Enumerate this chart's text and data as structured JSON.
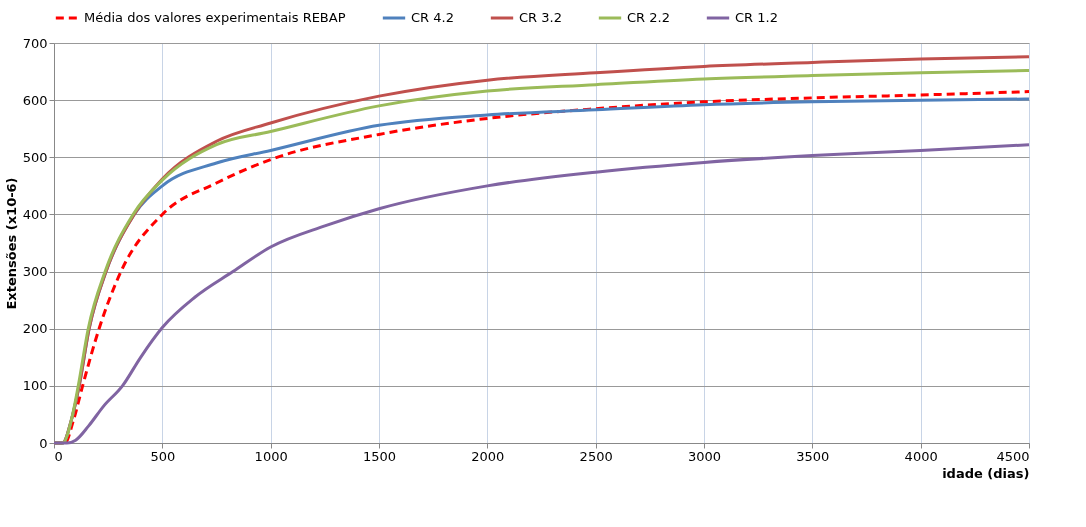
{
  "chart_data": {
    "type": "line",
    "xlabel": "idade (dias)",
    "ylabel": "Extensões (x10-6)",
    "xlim": [
      0,
      4500
    ],
    "xticks": [
      0,
      500,
      1000,
      1500,
      2000,
      2500,
      3000,
      3500,
      4000,
      4500
    ],
    "ylim": [
      0,
      700
    ],
    "yticks": [
      0,
      100,
      200,
      300,
      400,
      500,
      600,
      700
    ],
    "grid": true,
    "legend": "top",
    "marker": "none",
    "series": [
      {
        "name": "Média dos valores experimentais REBAP",
        "color": "#ff0000",
        "line_style": "dashed",
        "x": [
          0,
          50,
          90,
          132,
          208,
          309,
          500,
          750,
          1000,
          1500,
          2000,
          2500,
          3000,
          3500,
          4000,
          4500
        ],
        "values": [
          0,
          0,
          40,
          100,
          200,
          300,
          400,
          455,
          496,
          540,
          568,
          585,
          597,
          604,
          609,
          615
        ]
      },
      {
        "name": "CR 4.2",
        "color": "#4f81bd",
        "line_style": "solid",
        "x": [
          0,
          40,
          80,
          116,
          162,
          240,
          370,
          500,
          750,
          1000,
          1500,
          2000,
          2500,
          3000,
          3500,
          4000,
          4500
        ],
        "values": [
          0,
          0,
          40,
          100,
          200,
          300,
          400,
          450,
          490,
          512,
          556,
          574,
          583,
          592,
          597,
          600,
          602
        ]
      },
      {
        "name": "CR 3.2",
        "color": "#c0504d",
        "line_style": "solid",
        "x": [
          0,
          40,
          80,
          116,
          162,
          240,
          370,
          500,
          750,
          1000,
          1500,
          2000,
          2500,
          3000,
          3500,
          4000,
          4500
        ],
        "values": [
          0,
          0,
          40,
          100,
          200,
          300,
          400,
          462,
          528,
          560,
          607,
          635,
          648,
          659,
          666,
          672,
          676
        ]
      },
      {
        "name": "CR 2.2",
        "color": "#9bbb59",
        "line_style": "solid",
        "x": [
          0,
          40,
          80,
          112,
          158,
          236,
          365,
          500,
          750,
          1000,
          1500,
          2000,
          2500,
          3000,
          3500,
          4000,
          4500
        ],
        "values": [
          0,
          0,
          40,
          100,
          200,
          300,
          400,
          460,
          522,
          545,
          590,
          616,
          627,
          637,
          643,
          648,
          652
        ]
      },
      {
        "name": "CR 1.2",
        "color": "#8064a2",
        "line_style": "solid",
        "x": [
          0,
          60,
          100,
          160,
          230,
          316,
          400,
          500,
          650,
          826,
          1000,
          1250,
          1500,
          2000,
          2500,
          3000,
          3500,
          4000,
          4500
        ],
        "values": [
          0,
          0,
          5,
          30,
          65,
          100,
          150,
          202,
          255,
          300,
          343,
          380,
          410,
          450,
          474,
          491,
          503,
          512,
          522
        ]
      }
    ]
  }
}
